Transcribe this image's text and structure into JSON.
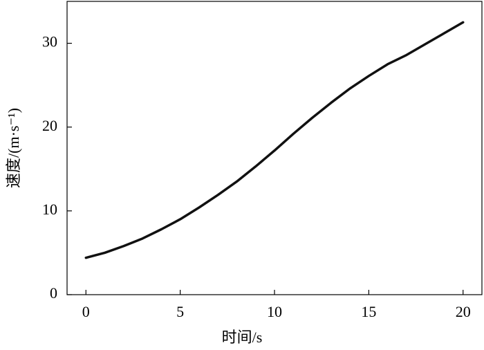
{
  "chart_data": {
    "type": "line",
    "x_label": "时间/s",
    "y_label": "速度/(m·s⁻¹)",
    "xlim": [
      -1,
      21
    ],
    "ylim": [
      0,
      35
    ],
    "xticks": [
      0,
      5,
      10,
      15,
      20
    ],
    "yticks": [
      0,
      10,
      20,
      30
    ],
    "x": [
      0,
      1,
      2,
      3,
      4,
      5,
      6,
      7,
      8,
      9,
      10,
      11,
      12,
      13,
      14,
      15,
      16,
      17,
      18,
      19,
      20
    ],
    "series": [
      {
        "color": "#111111",
        "values": [
          4.4,
          5.0,
          5.8,
          6.7,
          7.8,
          9.0,
          10.4,
          11.9,
          13.5,
          15.3,
          17.2,
          19.2,
          21.1,
          22.9,
          24.6,
          26.1,
          27.5,
          28.6,
          29.9,
          31.2,
          32.5
        ]
      }
    ]
  }
}
